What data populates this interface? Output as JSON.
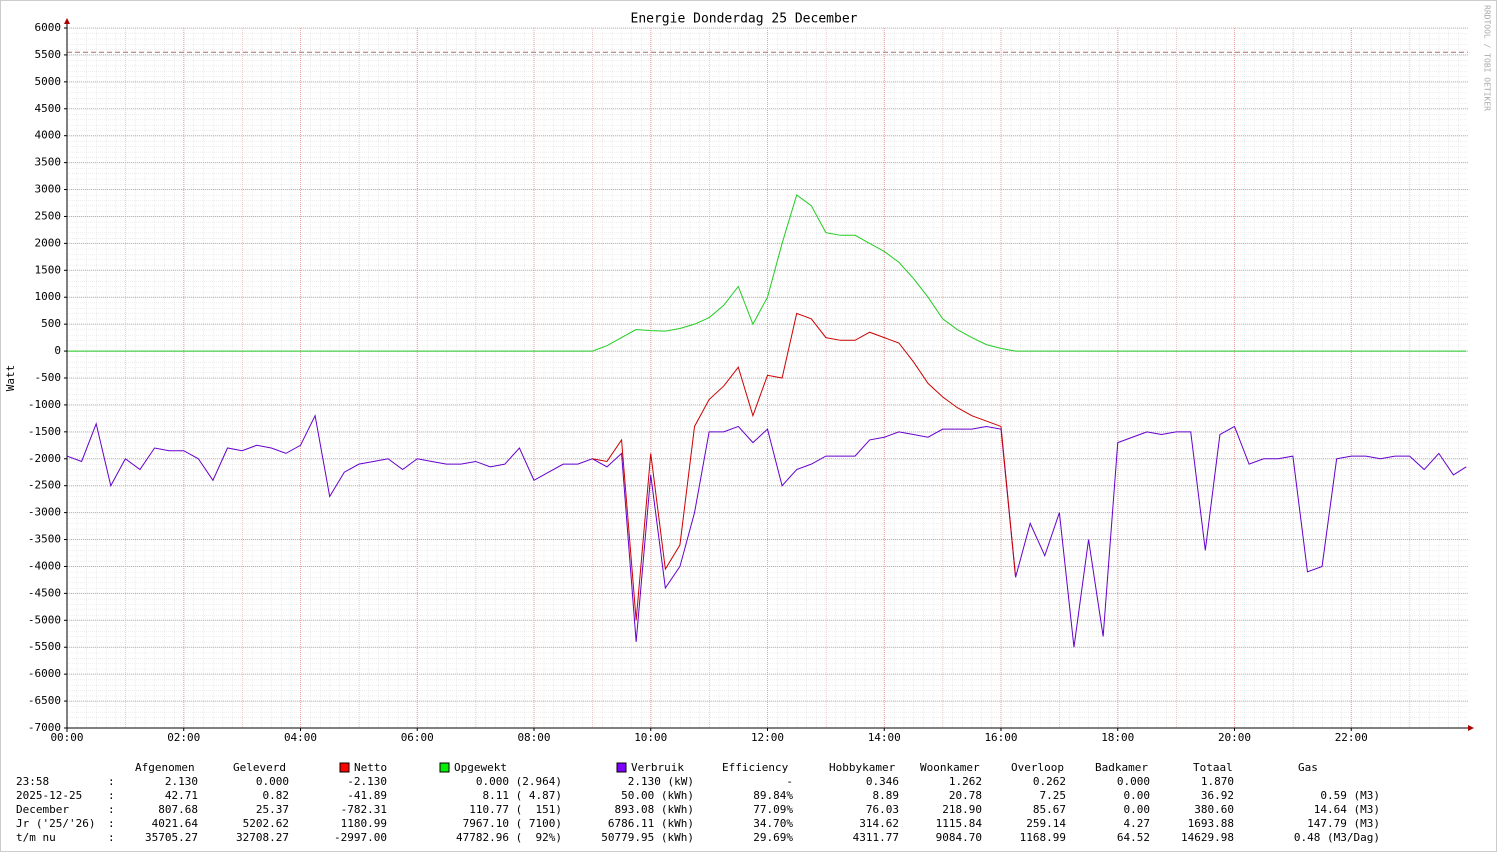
{
  "chart_data": {
    "type": "line",
    "title": "Energie Donderdag 25 December",
    "y_label": "Watt",
    "x": [
      0,
      0.25,
      0.5,
      0.75,
      1,
      1.25,
      1.5,
      1.75,
      2,
      2.25,
      2.5,
      2.75,
      3,
      3.25,
      3.5,
      3.75,
      4,
      4.25,
      4.5,
      4.75,
      5,
      5.25,
      5.5,
      5.75,
      6,
      6.25,
      6.5,
      6.75,
      7,
      7.25,
      7.5,
      7.75,
      8,
      8.25,
      8.5,
      8.75,
      9,
      9.25,
      9.5,
      9.75,
      10,
      10.25,
      10.5,
      10.75,
      11,
      11.25,
      11.5,
      11.75,
      12,
      12.25,
      12.5,
      12.75,
      13,
      13.25,
      13.5,
      13.75,
      14,
      14.25,
      14.5,
      14.75,
      15,
      15.25,
      15.5,
      15.75,
      16,
      16.25,
      16.5,
      16.75,
      17,
      17.25,
      17.5,
      17.75,
      18,
      18.25,
      18.5,
      18.75,
      19,
      19.25,
      19.5,
      19.75,
      20,
      20.25,
      20.5,
      20.75,
      21,
      21.25,
      21.5,
      21.75,
      22,
      22.25,
      22.5,
      22.75,
      23,
      23.25,
      23.5,
      23.75,
      23.97
    ],
    "xlim": [
      0,
      24
    ],
    "xticks": [
      {
        "value": 0,
        "label": "00:00"
      },
      {
        "value": 2,
        "label": "02:00"
      },
      {
        "value": 4,
        "label": "04:00"
      },
      {
        "value": 6,
        "label": "06:00"
      },
      {
        "value": 8,
        "label": "08:00"
      },
      {
        "value": 10,
        "label": "10:00"
      },
      {
        "value": 12,
        "label": "12:00"
      },
      {
        "value": 14,
        "label": "14:00"
      },
      {
        "value": 16,
        "label": "16:00"
      },
      {
        "value": 18,
        "label": "18:00"
      },
      {
        "value": 20,
        "label": "20:00"
      },
      {
        "value": 22,
        "label": "22:00"
      }
    ],
    "ylim": [
      -7000,
      6000
    ],
    "yticks": [
      6000,
      5500,
      5000,
      4500,
      4000,
      3500,
      3000,
      2500,
      2000,
      1500,
      1000,
      500,
      0,
      -500,
      -1000,
      -1500,
      -2000,
      -2500,
      -3000,
      -3500,
      -4000,
      -4500,
      -5000,
      -5500,
      -6000,
      -6500,
      -7000
    ],
    "reference_line": 5550,
    "series": [
      {
        "name": "Netto",
        "color": "#cc0000",
        "legend_color": "#ff0000",
        "values": [
          null,
          null,
          null,
          null,
          null,
          null,
          null,
          null,
          null,
          null,
          null,
          null,
          null,
          null,
          null,
          null,
          null,
          null,
          null,
          null,
          null,
          null,
          null,
          null,
          null,
          null,
          null,
          null,
          null,
          null,
          null,
          null,
          null,
          null,
          null,
          null,
          -2000,
          -2050,
          -1650,
          -5000,
          -1900,
          -4050,
          -3600,
          -1400,
          -900,
          -650,
          -300,
          -1200,
          -450,
          -500,
          700,
          600,
          250,
          200,
          200,
          350,
          250,
          150,
          -200,
          -600,
          -850,
          -1050,
          -1200,
          -1300,
          -1400,
          -4200,
          null,
          null,
          null,
          null,
          null,
          null,
          null,
          null,
          null,
          null,
          null,
          null,
          null,
          null,
          null,
          null,
          null,
          null,
          null,
          null,
          null,
          null,
          null,
          null,
          null,
          null,
          null,
          null,
          null,
          null,
          null
        ]
      },
      {
        "name": "Opgewekt",
        "color": "#22cc22",
        "legend_color": "#00ee00",
        "values": [
          0,
          0,
          0,
          0,
          0,
          0,
          0,
          0,
          0,
          0,
          0,
          0,
          0,
          0,
          0,
          0,
          0,
          0,
          0,
          0,
          0,
          0,
          0,
          0,
          0,
          0,
          0,
          0,
          0,
          0,
          0,
          0,
          0,
          0,
          0,
          0,
          0,
          100,
          250,
          400,
          380,
          370,
          420,
          500,
          620,
          850,
          1200,
          500,
          1000,
          2000,
          2900,
          2700,
          2200,
          2150,
          2150,
          2000,
          1850,
          1650,
          1350,
          1000,
          600,
          400,
          250,
          120,
          50,
          0,
          0,
          0,
          0,
          0,
          0,
          0,
          0,
          0,
          0,
          0,
          0,
          0,
          0,
          0,
          0,
          0,
          0,
          0,
          0,
          0,
          0,
          0,
          0,
          0,
          0,
          0,
          0,
          0,
          0,
          0,
          0
        ]
      },
      {
        "name": "Verbruik",
        "color": "#6600cc",
        "legend_color": "#7f00ff",
        "values": [
          -1950,
          -2050,
          -1350,
          -2500,
          -2000,
          -2200,
          -1800,
          -1850,
          -1850,
          -2000,
          -2400,
          -1800,
          -1850,
          -1750,
          -1800,
          -1900,
          -1750,
          -1200,
          -2700,
          -2250,
          -2100,
          -2050,
          -2000,
          -2200,
          -2000,
          -2050,
          -2100,
          -2100,
          -2050,
          -2150,
          -2100,
          -1800,
          -2400,
          -2250,
          -2100,
          -2100,
          -2000,
          -2150,
          -1900,
          -5400,
          -2300,
          -4400,
          -4000,
          -3000,
          -1500,
          -1500,
          -1400,
          -1700,
          -1450,
          -2500,
          -2200,
          -2100,
          -1950,
          -1950,
          -1950,
          -1650,
          -1600,
          -1500,
          -1550,
          -1600,
          -1450,
          -1450,
          -1450,
          -1400,
          -1450,
          -4200,
          -3200,
          -3800,
          -3000,
          -5500,
          -3500,
          -5300,
          -1700,
          -1600,
          -1500,
          -1550,
          -1500,
          -1500,
          -3700,
          -1550,
          -1400,
          -2100,
          -2000,
          -2000,
          -1950,
          -4100,
          -4000,
          -2000,
          -1950,
          -1950,
          -2000,
          -1950,
          -1950,
          -2200,
          -1900,
          -2300,
          -2150
        ]
      }
    ]
  },
  "summary": {
    "headers": [
      "Afgenomen",
      "Geleverd",
      "Efficiency",
      "Hobbykamer",
      "Woonkamer",
      "Overloop",
      "Badkamer",
      "Totaal",
      "Gas"
    ],
    "separator": ":",
    "rows": [
      {
        "label": "23:58",
        "values": [
          "2.130",
          "0.000",
          "-2.130",
          "0.000 (2.964)",
          "2.130 (kW)",
          "-",
          "0.346",
          "1.262",
          "0.262",
          "0.000",
          "1.870"
        ]
      },
      {
        "label": "2025-12-25",
        "values": [
          "42.71",
          "0.82",
          "-41.89",
          "8.11 ( 4.87)",
          "50.00 (kWh)",
          "89.84%",
          "8.89",
          "20.78",
          "7.25",
          "0.00",
          "36.92",
          "0.59 (M3)"
        ]
      },
      {
        "label": "December",
        "values": [
          "807.68",
          "25.37",
          "-782.31",
          "110.77 (  151)",
          "893.08 (kWh)",
          "77.09%",
          "76.03",
          "218.90",
          "85.67",
          "0.00",
          "380.60",
          "14.64 (M3)"
        ]
      },
      {
        "label": "Jr ('25/'26)",
        "values": [
          "4021.64",
          "5202.62",
          "1180.99",
          "7967.10 ( 7100)",
          "6786.11 (kWh)",
          "34.70%",
          "314.62",
          "1115.84",
          "259.14",
          "4.27",
          "1693.88",
          "147.79 (M3)"
        ]
      },
      {
        "label": "t/m nu",
        "values": [
          "35705.27",
          "32708.27",
          "-2997.00",
          "47782.96 (  92%)",
          "50779.95 (kWh)",
          "29.69%",
          "4311.77",
          "9084.70",
          "1168.99",
          "64.52",
          "14629.98",
          "0.48 (M3/Dag)"
        ]
      }
    ]
  },
  "watermark": "RRDTOOL / TOBI OETIKER"
}
